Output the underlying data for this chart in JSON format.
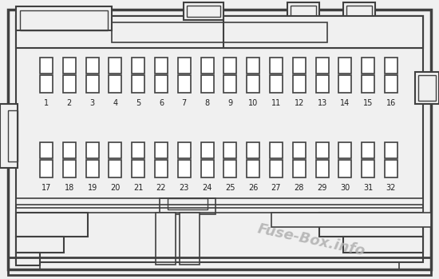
{
  "bg_color": "#f0f0f0",
  "line_color": "#404040",
  "watermark": "Fuse-Box.info",
  "watermark_color": "#b0b0b0",
  "row1_labels": [
    "1",
    "2",
    "3",
    "4",
    "5",
    "6",
    "7",
    "8",
    "9",
    "10",
    "11",
    "12",
    "13",
    "14",
    "15",
    "16"
  ],
  "row2_labels": [
    "17",
    "18",
    "19",
    "20",
    "21",
    "22",
    "23",
    "24",
    "25",
    "26",
    "27",
    "28",
    "29",
    "30",
    "31",
    "32"
  ]
}
